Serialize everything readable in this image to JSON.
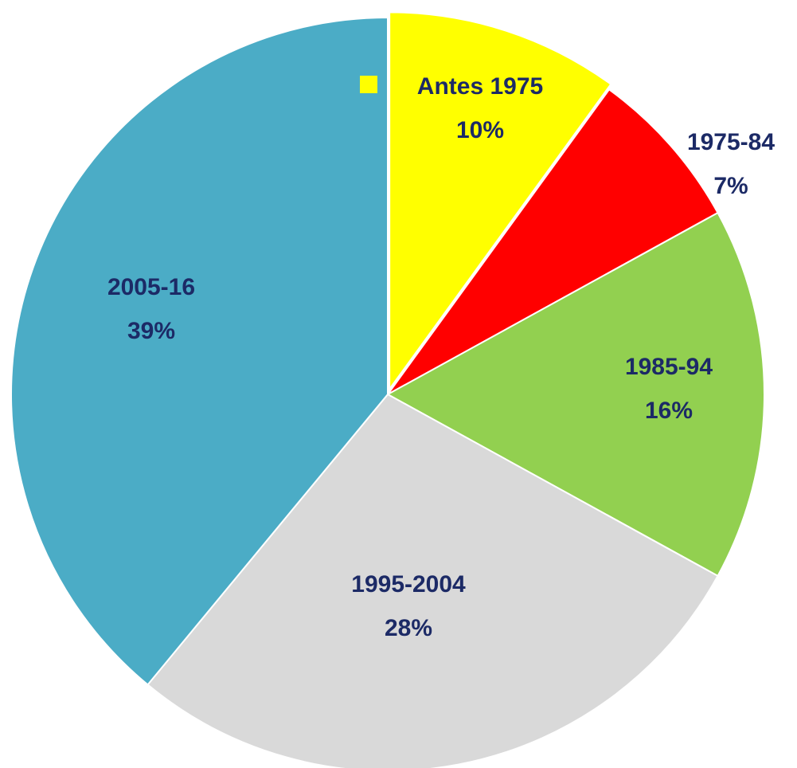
{
  "chart_data": {
    "type": "pie",
    "categories": [
      "Antes 1975",
      "1975-84",
      "1985-94",
      "1995-2004",
      "2005-16"
    ],
    "values": [
      10,
      7,
      16,
      28,
      39
    ],
    "value_labels": [
      "10%",
      "7%",
      "16%",
      "28%",
      "39%"
    ],
    "colors": [
      "#ffff00",
      "#ff0000",
      "#92d050",
      "#d9d9d9",
      "#4bacc6"
    ]
  }
}
